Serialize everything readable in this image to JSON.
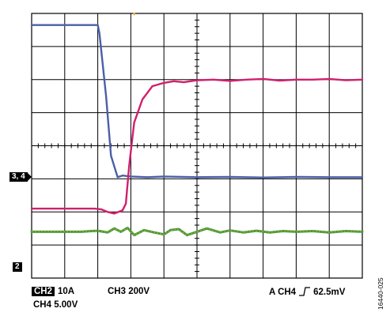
{
  "chart_data": {
    "type": "line",
    "title": "",
    "xlabel": "",
    "ylabel": "",
    "x_divisions": 10,
    "y_divisions": 8,
    "xlim": [
      0,
      10
    ],
    "ylim": [
      0,
      8
    ],
    "grid": true,
    "series": [
      {
        "color": "#4a5fa8",
        "x": [
          0,
          2.0,
          2.05,
          2.25,
          2.4,
          2.6,
          2.75,
          3.0,
          3.5,
          4.0,
          5.0,
          6.0,
          7.0,
          8.0,
          9.0,
          10.0
        ],
        "y": [
          7.65,
          7.65,
          7.4,
          5.5,
          3.7,
          3.05,
          3.1,
          3.07,
          3.05,
          3.07,
          3.05,
          3.06,
          3.04,
          3.06,
          3.05,
          3.05
        ]
      },
      {
        "color": "#d0206e",
        "x": [
          0,
          1.9,
          2.1,
          2.3,
          2.5,
          2.75,
          2.85,
          2.95,
          3.1,
          3.35,
          3.65,
          4.0,
          4.3,
          4.6,
          5.0,
          5.5,
          6.0,
          6.5,
          7.0,
          7.5,
          8.0,
          8.5,
          9.0,
          9.5,
          10.0
        ],
        "y": [
          2.1,
          2.1,
          2.08,
          2.0,
          1.95,
          2.05,
          2.25,
          3.4,
          4.7,
          5.4,
          5.8,
          5.9,
          5.95,
          5.92,
          5.98,
          6.0,
          5.96,
          6.0,
          6.02,
          5.97,
          6.0,
          6.0,
          6.02,
          5.98,
          6.0
        ]
      },
      {
        "color": "#3a9a3a",
        "x": [
          0,
          1.5,
          1.8,
          2.0,
          2.3,
          2.5,
          2.7,
          2.9,
          3.1,
          3.4,
          3.7,
          4.0,
          4.2,
          4.45,
          4.7,
          5.0,
          5.3,
          5.7,
          6.0,
          6.4,
          6.8,
          7.2,
          7.6,
          8.0,
          8.5,
          9.0,
          9.5,
          10.0
        ],
        "y": [
          1.4,
          1.4,
          1.42,
          1.43,
          1.38,
          1.5,
          1.4,
          1.52,
          1.3,
          1.45,
          1.38,
          1.32,
          1.45,
          1.48,
          1.3,
          1.4,
          1.5,
          1.38,
          1.44,
          1.38,
          1.43,
          1.38,
          1.42,
          1.4,
          1.42,
          1.38,
          1.42,
          1.4
        ]
      }
    ]
  },
  "markers": {
    "ch34": "3, 4",
    "ch2": "2",
    "trigger_arrow": "T"
  },
  "status": {
    "ch2_badge": "CH2",
    "ch2_scale": "10A",
    "ch3_text": "CH3 200V",
    "ch4_text": "CH4 5.00V",
    "trigger_prefix": "A  CH4",
    "trigger_level": "62.5mV"
  },
  "figure_id": "16440-025",
  "colors": {
    "grid": "#000000",
    "ch3": "#4a5fa8",
    "ch4": "#d0206e",
    "ch2": "#3a9a3a",
    "ch2_overlay": "#e8a020",
    "trigger": "#e8a020"
  }
}
